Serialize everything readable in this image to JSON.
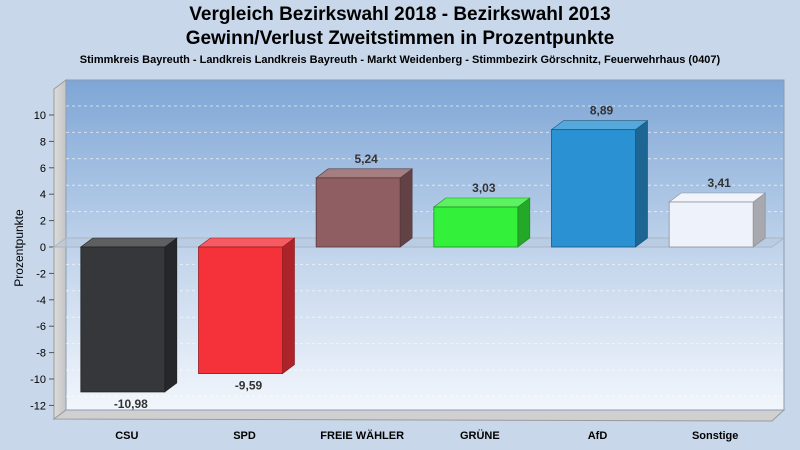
{
  "header": {
    "title_line1": "Vergleich Bezirkswahl 2018 - Bezirkswahl 2013",
    "title_line2": "Gewinn/Verlust Zweitstimmen in Prozentpunkte",
    "subtitle": "Stimmkreis Bayreuth - Landkreis Landkreis Bayreuth - Markt Weidenberg - Stimmbezirk Görschnitz, Feuerwehrhaus (0407)"
  },
  "chart_data": {
    "type": "bar",
    "title": "Vergleich Bezirkswahl 2018 - Bezirkswahl 2013 / Gewinn/Verlust Zweitstimmen in Prozentpunkte",
    "ylabel": "Prozentpunkte",
    "xlabel": "",
    "ylim": [
      -13,
      11
    ],
    "yticks": [
      10,
      8,
      6,
      4,
      2,
      0,
      -2,
      -4,
      -6,
      -8,
      -10,
      -12
    ],
    "ytick_labels": [
      "10",
      "8",
      "6",
      "4",
      "2",
      "0",
      "-2",
      "-4",
      "-6",
      "-8",
      "-10",
      "-12"
    ],
    "grid": true,
    "categories": [
      "CSU",
      "SPD",
      "FREIE WÄHLER",
      "GRÜNE",
      "AfD",
      "Sonstige"
    ],
    "values": [
      -10.98,
      -9.59,
      5.24,
      3.03,
      8.89,
      3.41
    ],
    "value_labels": [
      "-10,98",
      "-9,59",
      "5,24",
      "3,03",
      "8,89",
      "3,41"
    ],
    "colors": [
      "#35373a",
      "#f5323a",
      "#8e5e62",
      "#33f03a",
      "#2a92d2",
      "#eef2fa"
    ]
  }
}
